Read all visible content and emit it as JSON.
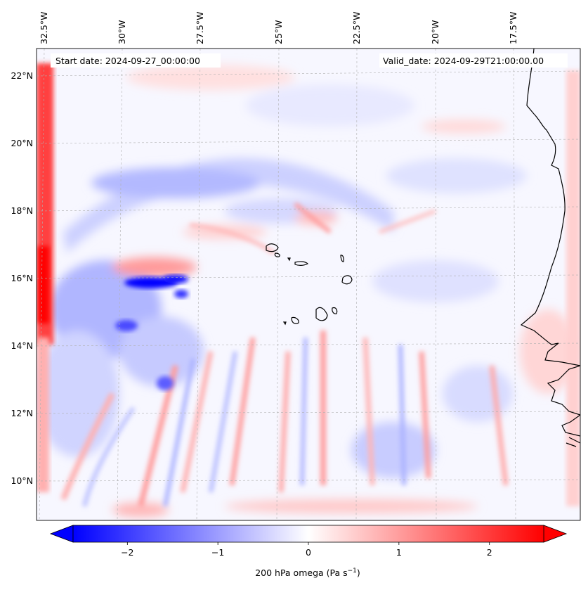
{
  "map": {
    "start_date_label": "Start date: 2024-09-27_00:00:00",
    "valid_date_label": "Valid_date: 2024-09-29T21:00:00.00",
    "lon_labels": [
      "32.5°W",
      "30°W",
      "27.5°W",
      "25°W",
      "22.5°W",
      "20°W",
      "17.5°W"
    ],
    "lat_labels": [
      "22°N",
      "20°N",
      "18°N",
      "16°N",
      "14°N",
      "12°N",
      "10°N"
    ]
  },
  "colorbar": {
    "tick_values": [
      -2,
      -1,
      0,
      1,
      2
    ],
    "tick_labels": [
      "−2",
      "−1",
      "0",
      "1",
      "2"
    ],
    "range": [
      -2.6,
      2.6
    ],
    "label_main": "200 hPa omega (Pa s",
    "label_sup": "−1",
    "label_close": ")",
    "colormap": "bwr",
    "colors": {
      "min": "#0000ff",
      "mid": "#ffffff",
      "max": "#ff0000"
    }
  }
}
